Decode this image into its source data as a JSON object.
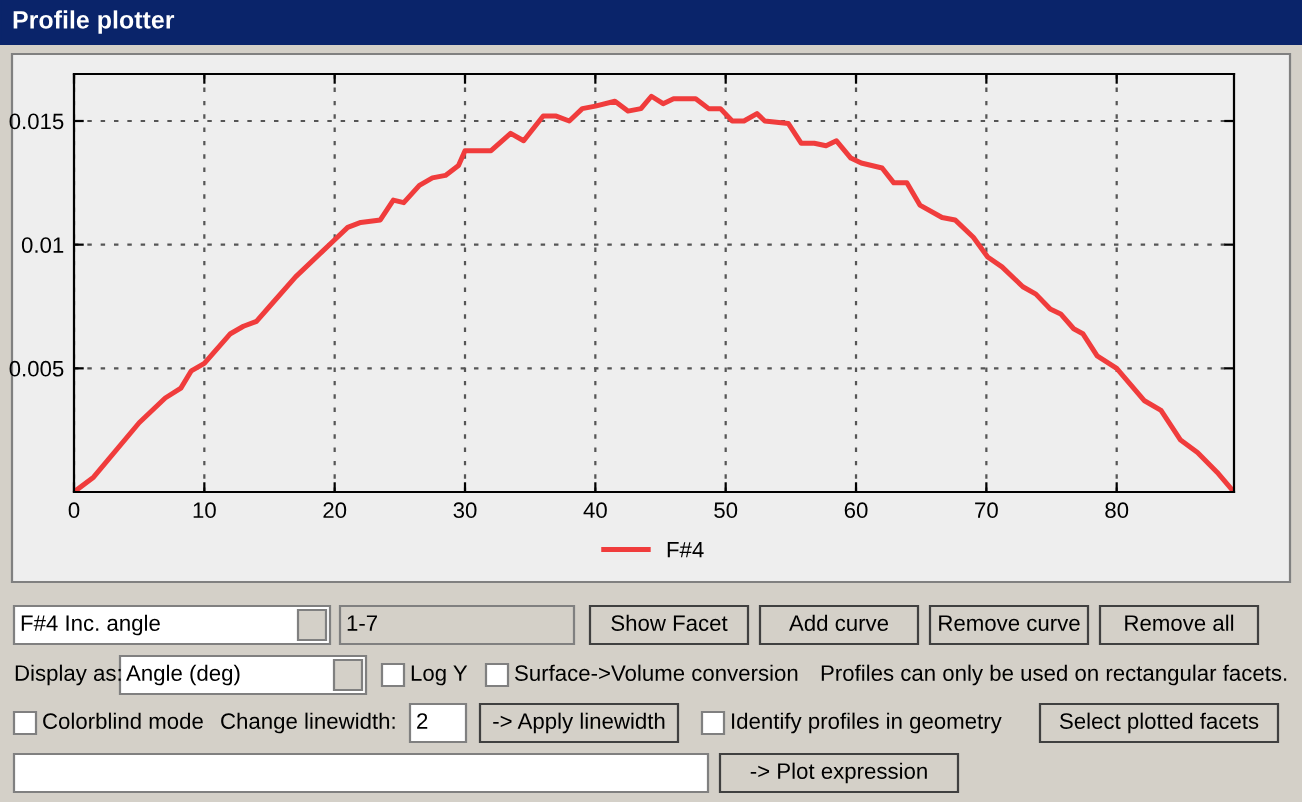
{
  "chart_data": {
    "type": "line",
    "title": "Profile plotter",
    "x": [
      0,
      1.5,
      5,
      7,
      8.2,
      9,
      10,
      12,
      13,
      14,
      15,
      17,
      19,
      20,
      21,
      22,
      23.5,
      24.5,
      25.3,
      26.5,
      27.5,
      28.5,
      29.5,
      30,
      32,
      33.5,
      34.5,
      36,
      37,
      38,
      39,
      40,
      41.5,
      42.5,
      43.5,
      44.3,
      45.2,
      46,
      47.7,
      48.7,
      49.6,
      50.5,
      51.4,
      52.4,
      53,
      54.8,
      55.8,
      56.8,
      57.7,
      58.5,
      59.6,
      60.4,
      62,
      62.9,
      63.9,
      64.9,
      66.6,
      67.6,
      69,
      70.1,
      71.2,
      72.8,
      73.8,
      74.9,
      75.7,
      76.7,
      77.4,
      78.5,
      80,
      82.1,
      83.4,
      84.9,
      86.2,
      87.7,
      89
    ],
    "series": [
      {
        "name": "F#4",
        "color": "#f03c3c",
        "values": [
          0,
          0.0006,
          0.0028,
          0.0038,
          0.0042,
          0.0049,
          0.0052,
          0.0064,
          0.0067,
          0.0069,
          0.0075,
          0.0087,
          0.0097,
          0.0102,
          0.0107,
          0.0109,
          0.011,
          0.0118,
          0.0117,
          0.0124,
          0.0127,
          0.0128,
          0.0132,
          0.0138,
          0.0138,
          0.0145,
          0.0142,
          0.0152,
          0.0152,
          0.015,
          0.0155,
          0.0156,
          0.0158,
          0.0154,
          0.0155,
          0.016,
          0.0157,
          0.0159,
          0.0159,
          0.0155,
          0.0155,
          0.015,
          0.015,
          0.0153,
          0.015,
          0.0149,
          0.0141,
          0.0141,
          0.014,
          0.0142,
          0.0135,
          0.0133,
          0.0131,
          0.0125,
          0.0125,
          0.0116,
          0.0111,
          0.011,
          0.0103,
          0.0095,
          0.0091,
          0.0083,
          0.008,
          0.0074,
          0.0072,
          0.0066,
          0.0064,
          0.0055,
          0.005,
          0.0037,
          0.0033,
          0.0021,
          0.0016,
          0.0008,
          0
        ]
      }
    ],
    "xlim": [
      0,
      89
    ],
    "ylim": [
      0,
      0.0169
    ],
    "xticks": [
      0,
      10,
      20,
      30,
      40,
      50,
      60,
      70,
      80
    ],
    "yticks": [
      0.005,
      0.01,
      0.015
    ],
    "grid": true,
    "legend": "bottom",
    "marker": "none",
    "line_style": "solid",
    "annotations": [
      "F#4 Inc. angle",
      "1-7",
      "Show Facet",
      "Add curve",
      "Remove curve",
      "Remove all",
      "Display as:",
      "Angle (deg)",
      "Log Y",
      "Surface->Volume conversion",
      "Profiles can only be used on rectangular facets.",
      "Colorblind mode",
      "Change linewidth:",
      "2",
      "-> Apply linewidth",
      "Identify profiles in geometry",
      "Select plotted facets",
      "-> Plot expression"
    ]
  }
}
